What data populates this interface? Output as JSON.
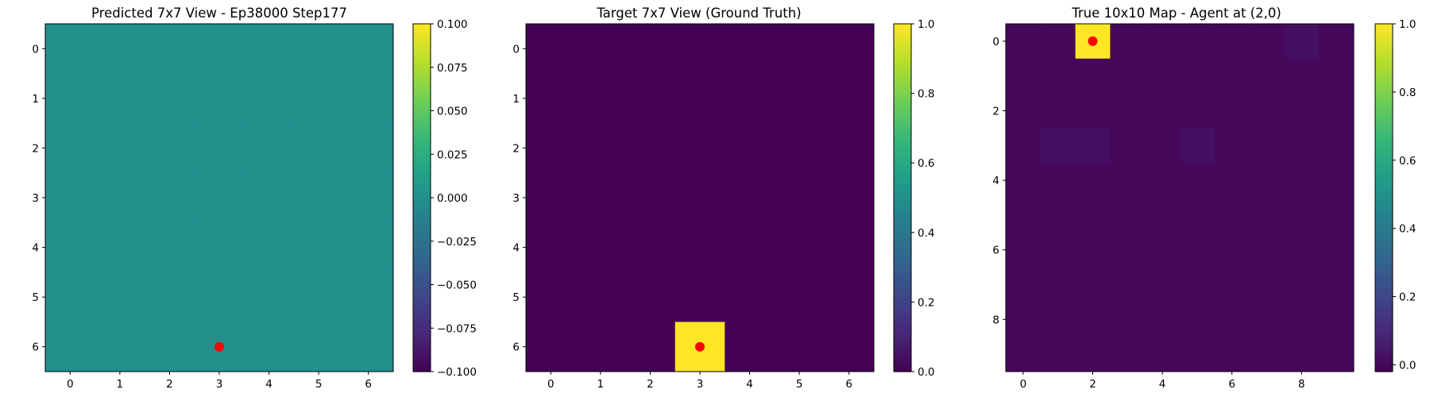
{
  "colors": {
    "viridis": [
      "#440154",
      "#482878",
      "#3e4989",
      "#31688e",
      "#26828e",
      "#1f9e89",
      "#35b779",
      "#6ece58",
      "#b5de2b",
      "#fde725"
    ],
    "agent_marker": "#ff0000",
    "axis": "#000000"
  },
  "chart_data": [
    {
      "type": "heatmap",
      "title": "Predicted 7x7 View - Ep38000 Step177",
      "rows": 7,
      "cols": 7,
      "x_ticks": [
        0,
        1,
        2,
        3,
        4,
        5,
        6
      ],
      "y_ticks": [
        0,
        1,
        2,
        3,
        4,
        5,
        6
      ],
      "values": [
        [
          0,
          0,
          0,
          0,
          0,
          0,
          0
        ],
        [
          0,
          0,
          0,
          0,
          0,
          0,
          0
        ],
        [
          0,
          0,
          0,
          0,
          0,
          0,
          0
        ],
        [
          0,
          0,
          0,
          0,
          0,
          0,
          0
        ],
        [
          0,
          0,
          0,
          0,
          0,
          0,
          0
        ],
        [
          0,
          0,
          0,
          0,
          0,
          0,
          0
        ],
        [
          0,
          0,
          0,
          0,
          0,
          0,
          0
        ]
      ],
      "vmin": -0.1,
      "vmax": 0.1,
      "colorbar_ticks": [
        0.1,
        0.075,
        0.05,
        0.025,
        0.0,
        -0.025,
        -0.05,
        -0.075,
        -0.1
      ],
      "colorbar_tick_labels": [
        "0.100",
        "0.075",
        "0.050",
        "0.025",
        "0.000",
        "−0.025",
        "−0.050",
        "−0.075",
        "−0.100"
      ],
      "agent": {
        "col": 3,
        "row": 6
      }
    },
    {
      "type": "heatmap",
      "title": "Target 7x7 View (Ground Truth)",
      "rows": 7,
      "cols": 7,
      "x_ticks": [
        0,
        1,
        2,
        3,
        4,
        5,
        6
      ],
      "y_ticks": [
        0,
        1,
        2,
        3,
        4,
        5,
        6
      ],
      "values": [
        [
          0,
          0,
          0,
          0,
          0,
          0,
          0
        ],
        [
          0,
          0,
          0,
          0,
          0,
          0,
          0
        ],
        [
          0,
          0,
          0,
          0,
          0,
          0,
          0
        ],
        [
          0,
          0,
          0,
          0,
          0,
          0,
          0
        ],
        [
          0,
          0,
          0,
          0,
          0,
          0,
          0
        ],
        [
          0,
          0,
          0,
          0,
          0,
          0,
          0
        ],
        [
          0,
          0,
          0,
          1,
          0,
          0,
          0
        ]
      ],
      "vmin": 0,
      "vmax": 1,
      "colorbar_ticks": [
        1.0,
        0.8,
        0.6,
        0.4,
        0.2,
        0.0
      ],
      "colorbar_tick_labels": [
        "1.0",
        "0.8",
        "0.6",
        "0.4",
        "0.2",
        "0.0"
      ],
      "agent": {
        "col": 3,
        "row": 6
      }
    },
    {
      "type": "heatmap",
      "title": "True 10x10 Map - Agent at (2,0)",
      "rows": 10,
      "cols": 10,
      "x_ticks": [
        0,
        2,
        4,
        6,
        8
      ],
      "y_ticks": [
        0,
        2,
        4,
        6,
        8
      ],
      "values": [
        [
          0,
          0,
          1,
          0,
          0,
          0,
          0,
          0,
          0.02,
          0
        ],
        [
          0,
          0,
          0,
          0,
          0,
          0,
          0,
          0,
          0,
          0
        ],
        [
          0,
          0,
          0,
          0,
          0,
          0,
          0,
          0,
          0,
          0
        ],
        [
          0,
          0.02,
          0.02,
          0,
          0,
          0.02,
          0,
          0,
          0,
          0
        ],
        [
          0,
          0,
          0,
          0,
          0,
          0,
          0,
          0,
          0,
          0
        ],
        [
          0,
          0,
          0,
          0,
          0,
          0,
          0,
          0,
          0,
          0
        ],
        [
          0,
          0,
          0,
          0,
          0,
          0,
          0,
          0,
          0,
          0
        ],
        [
          0,
          0,
          0,
          0,
          0,
          0,
          0,
          0,
          0,
          0
        ],
        [
          0,
          0,
          0,
          0,
          0,
          0,
          0,
          0,
          0,
          0
        ],
        [
          0,
          0,
          0,
          0,
          0,
          0,
          0,
          0,
          0,
          0
        ]
      ],
      "vmin": -0.02,
      "vmax": 1.0,
      "colorbar_ticks": [
        1.0,
        0.8,
        0.6,
        0.4,
        0.2,
        0.0
      ],
      "colorbar_tick_labels": [
        "1.0",
        "0.8",
        "0.6",
        "0.4",
        "0.2",
        "0.0"
      ],
      "agent": {
        "col": 2,
        "row": 0
      }
    }
  ]
}
